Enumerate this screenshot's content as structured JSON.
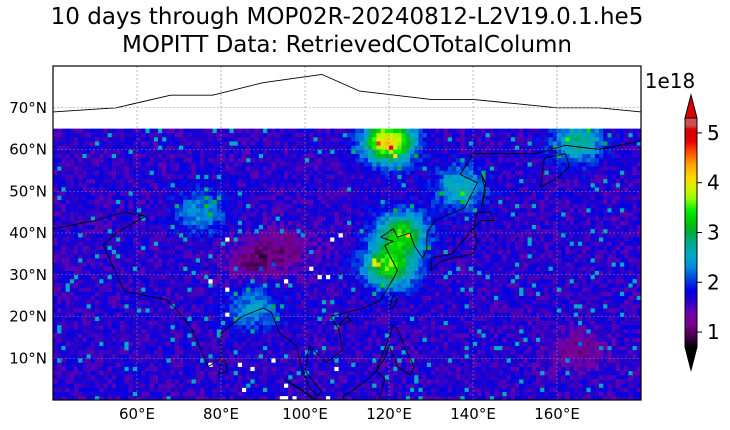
{
  "title": {
    "line1": "10 days through MOP02R-20240812-L2V19.0.1.he5",
    "line2": "MOPITT Data: RetrievedCOTotalColumn"
  },
  "chart_data": {
    "type": "heatmap",
    "projection": "PlateCarree",
    "title": "10 days through MOP02R-20240812-L2V19.0.1.he5 / MOPITT Data: RetrievedCOTotalColumn",
    "x_axis": {
      "unit": "degrees longitude",
      "range": [
        40,
        180
      ],
      "ticks": [
        60,
        80,
        100,
        120,
        140,
        160
      ],
      "tick_labels": [
        "60°E",
        "80°E",
        "100°E",
        "120°E",
        "140°E",
        "160°E"
      ]
    },
    "y_axis": {
      "unit": "degrees latitude",
      "range": [
        0,
        80
      ],
      "ticks": [
        10,
        20,
        30,
        40,
        50,
        60,
        70
      ],
      "tick_labels": [
        "10°N",
        "20°N",
        "30°N",
        "40°N",
        "50°N",
        "60°N",
        "70°N"
      ]
    },
    "grid": true,
    "data_extent_lat": [
      0,
      65
    ],
    "colorbar": {
      "multiplier": "1e18",
      "range": [
        0.7,
        5.3
      ],
      "ticks": [
        1,
        2,
        3,
        4,
        5
      ],
      "tick_labels": [
        "1",
        "2",
        "3",
        "4",
        "5"
      ],
      "extend": "both",
      "colormap": "nipy_spectral"
    },
    "background_value": 1.65,
    "hotspots": [
      {
        "lon": 120,
        "lat": 32,
        "value": 3.5
      },
      {
        "lon": 120,
        "lat": 62,
        "value": 4.2
      },
      {
        "lon": 123,
        "lat": 40,
        "value": 3.3
      },
      {
        "lon": 137,
        "lat": 51,
        "value": 2.7
      },
      {
        "lon": 165,
        "lat": 62,
        "value": 2.8
      },
      {
        "lon": 75,
        "lat": 45,
        "value": 2.4
      },
      {
        "lon": 88,
        "lat": 22,
        "value": 2.4
      }
    ],
    "low_regions": [
      {
        "lon": 88,
        "lat": 33,
        "value": 1.1
      },
      {
        "lon": 95,
        "lat": 37,
        "value": 1.2
      },
      {
        "lon": 165,
        "lat": 12,
        "value": 1.2
      }
    ]
  }
}
